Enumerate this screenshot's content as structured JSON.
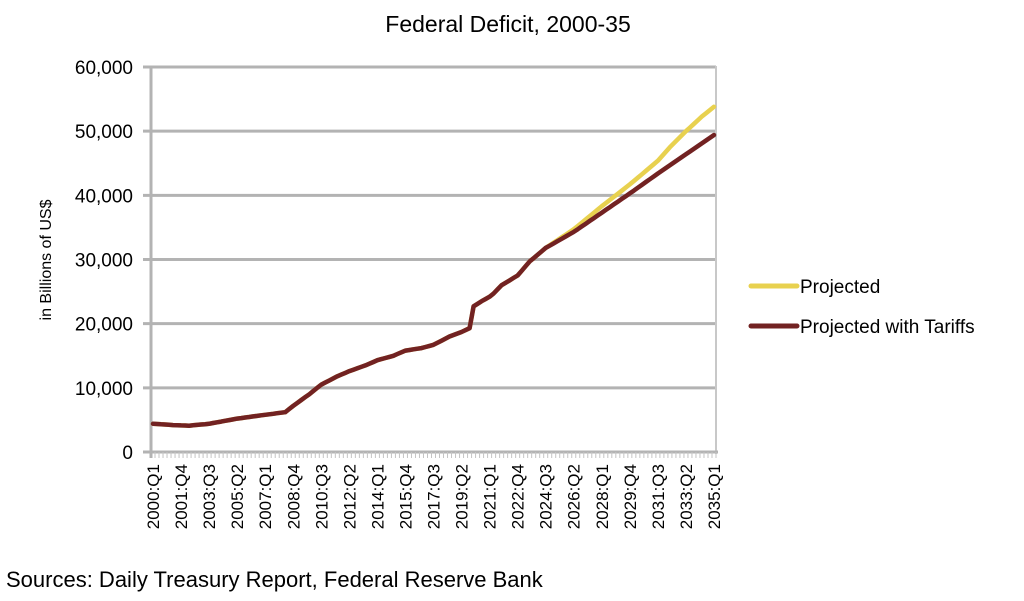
{
  "chart_data": {
    "type": "line",
    "title": "Federal Deficit, 2000-35",
    "xlabel": "",
    "ylabel": "in Billions of US$",
    "ylim": [
      0,
      60000
    ],
    "yticks": [
      0,
      10000,
      20000,
      30000,
      40000,
      50000,
      60000
    ],
    "ytick_labels": [
      "0",
      "10,000",
      "20,000",
      "30,000",
      "40,000",
      "50,000",
      "60,000"
    ],
    "x_start": "2000:Q1",
    "x_end": "2035:Q1",
    "quarter_count": 141,
    "xtick_labels": [
      "2000:Q1",
      "2001:Q4",
      "2003:Q3",
      "2005:Q2",
      "2007:Q1",
      "2008:Q4",
      "2010:Q3",
      "2012:Q2",
      "2014:Q1",
      "2015:Q4",
      "2017:Q3",
      "2019:Q2",
      "2021:Q1",
      "2022:Q4",
      "2024:Q3",
      "2026:Q2",
      "2028:Q1",
      "2029:Q4",
      "2031:Q3",
      "2033:Q2",
      "2035:Q1"
    ],
    "grid": true,
    "legend_position": "right",
    "series": [
      {
        "name": "Projected",
        "color": "#E8D14F",
        "points": [
          {
            "x": "2000:Q1",
            "y": 4400
          },
          {
            "x": "2001:Q2",
            "y": 4200
          },
          {
            "x": "2002:Q2",
            "y": 4100
          },
          {
            "x": "2003:Q3",
            "y": 4400
          },
          {
            "x": "2005:Q2",
            "y": 5200
          },
          {
            "x": "2007:Q1",
            "y": 5800
          },
          {
            "x": "2008:Q2",
            "y": 6200
          },
          {
            "x": "2008:Q4",
            "y": 7200
          },
          {
            "x": "2009:Q4",
            "y": 9000
          },
          {
            "x": "2010:Q3",
            "y": 10500
          },
          {
            "x": "2011:Q3",
            "y": 11800
          },
          {
            "x": "2012:Q2",
            "y": 12600
          },
          {
            "x": "2013:Q2",
            "y": 13500
          },
          {
            "x": "2014:Q1",
            "y": 14300
          },
          {
            "x": "2015:Q1",
            "y": 15000
          },
          {
            "x": "2015:Q4",
            "y": 15800
          },
          {
            "x": "2016:Q4",
            "y": 16200
          },
          {
            "x": "2017:Q3",
            "y": 16700
          },
          {
            "x": "2018:Q3",
            "y": 18000
          },
          {
            "x": "2019:Q2",
            "y": 18700
          },
          {
            "x": "2019:Q4",
            "y": 19300
          },
          {
            "x": "2020:Q1",
            "y": 22700
          },
          {
            "x": "2020:Q3",
            "y": 23500
          },
          {
            "x": "2021:Q1",
            "y": 24200
          },
          {
            "x": "2021:Q2",
            "y": 24700
          },
          {
            "x": "2021:Q4",
            "y": 26000
          },
          {
            "x": "2022:Q4",
            "y": 27500
          },
          {
            "x": "2023:Q3",
            "y": 29700
          },
          {
            "x": "2024:Q3",
            "y": 31800
          },
          {
            "x": "2026:Q2",
            "y": 34700
          },
          {
            "x": "2028:Q1",
            "y": 38300
          },
          {
            "x": "2029:Q4",
            "y": 41700
          },
          {
            "x": "2031:Q3",
            "y": 45400
          },
          {
            "x": "2032:Q2",
            "y": 47500
          },
          {
            "x": "2033:Q2",
            "y": 50000
          },
          {
            "x": "2034:Q2",
            "y": 52300
          },
          {
            "x": "2035:Q1",
            "y": 53800
          }
        ]
      },
      {
        "name": "Projected with Tariffs",
        "color": "#722222",
        "points": [
          {
            "x": "2000:Q1",
            "y": 4400
          },
          {
            "x": "2001:Q2",
            "y": 4200
          },
          {
            "x": "2002:Q2",
            "y": 4100
          },
          {
            "x": "2003:Q3",
            "y": 4400
          },
          {
            "x": "2005:Q2",
            "y": 5200
          },
          {
            "x": "2007:Q1",
            "y": 5800
          },
          {
            "x": "2008:Q2",
            "y": 6200
          },
          {
            "x": "2008:Q4",
            "y": 7200
          },
          {
            "x": "2009:Q4",
            "y": 9000
          },
          {
            "x": "2010:Q3",
            "y": 10500
          },
          {
            "x": "2011:Q3",
            "y": 11800
          },
          {
            "x": "2012:Q2",
            "y": 12600
          },
          {
            "x": "2013:Q2",
            "y": 13500
          },
          {
            "x": "2014:Q1",
            "y": 14300
          },
          {
            "x": "2015:Q1",
            "y": 15000
          },
          {
            "x": "2015:Q4",
            "y": 15800
          },
          {
            "x": "2016:Q4",
            "y": 16200
          },
          {
            "x": "2017:Q3",
            "y": 16700
          },
          {
            "x": "2018:Q3",
            "y": 18000
          },
          {
            "x": "2019:Q2",
            "y": 18700
          },
          {
            "x": "2019:Q4",
            "y": 19300
          },
          {
            "x": "2020:Q1",
            "y": 22700
          },
          {
            "x": "2020:Q3",
            "y": 23500
          },
          {
            "x": "2021:Q1",
            "y": 24200
          },
          {
            "x": "2021:Q2",
            "y": 24700
          },
          {
            "x": "2021:Q4",
            "y": 26000
          },
          {
            "x": "2022:Q4",
            "y": 27500
          },
          {
            "x": "2023:Q3",
            "y": 29700
          },
          {
            "x": "2024:Q3",
            "y": 31800
          },
          {
            "x": "2026:Q2",
            "y": 34300
          },
          {
            "x": "2028:Q1",
            "y": 37300
          },
          {
            "x": "2029:Q4",
            "y": 40300
          },
          {
            "x": "2031:Q3",
            "y": 43400
          },
          {
            "x": "2033:Q2",
            "y": 46400
          },
          {
            "x": "2035:Q1",
            "y": 49400
          }
        ]
      }
    ],
    "source": "Sources: Daily Treasury Report, Federal Reserve Bank"
  }
}
